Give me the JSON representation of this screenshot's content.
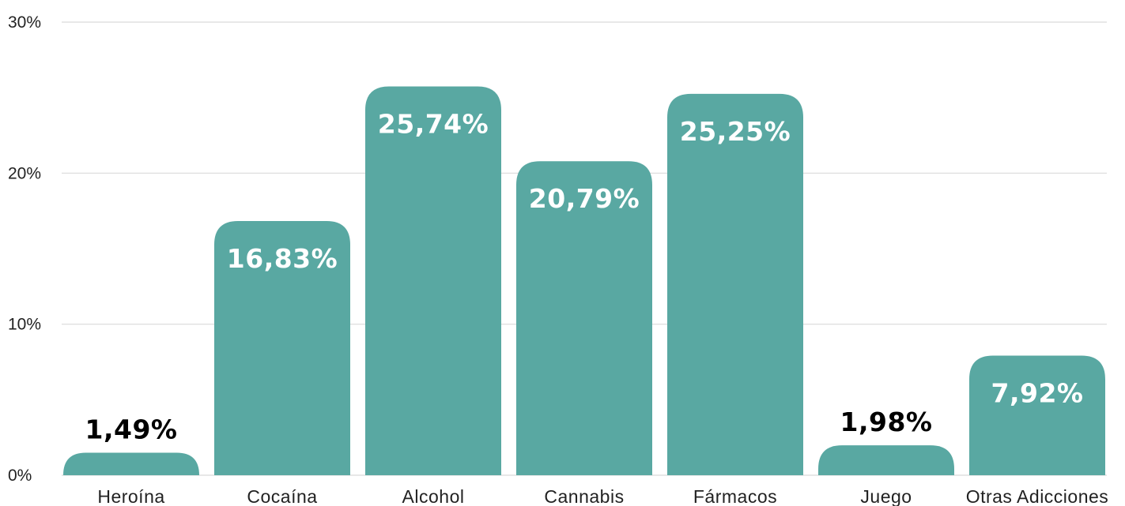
{
  "chart_data": {
    "type": "bar",
    "title": "",
    "xlabel": "",
    "ylabel": "",
    "categories": [
      "Heroína",
      "Cocaína",
      "Alcohol",
      "Cannabis",
      "Fármacos",
      "Juego",
      "Otras Adicciones"
    ],
    "values": [
      1.49,
      16.83,
      25.74,
      20.79,
      25.25,
      1.98,
      7.92
    ],
    "value_labels": [
      "1,49%",
      "16,83%",
      "25,74%",
      "20,79%",
      "25,25%",
      "1,98%",
      "7,92%"
    ],
    "ylim": [
      0,
      30
    ],
    "yticks": [
      {
        "value": 0,
        "label": "0%"
      },
      {
        "value": 10,
        "label": "10%"
      },
      {
        "value": 20,
        "label": "20%"
      },
      {
        "value": 30,
        "label": "30%"
      }
    ],
    "grid": true,
    "legend": "none",
    "colors": {
      "bar": "#59a8a2",
      "label_inside": "#ffffff",
      "label_outside": "#000000",
      "grid": "#d9d9d9"
    }
  }
}
